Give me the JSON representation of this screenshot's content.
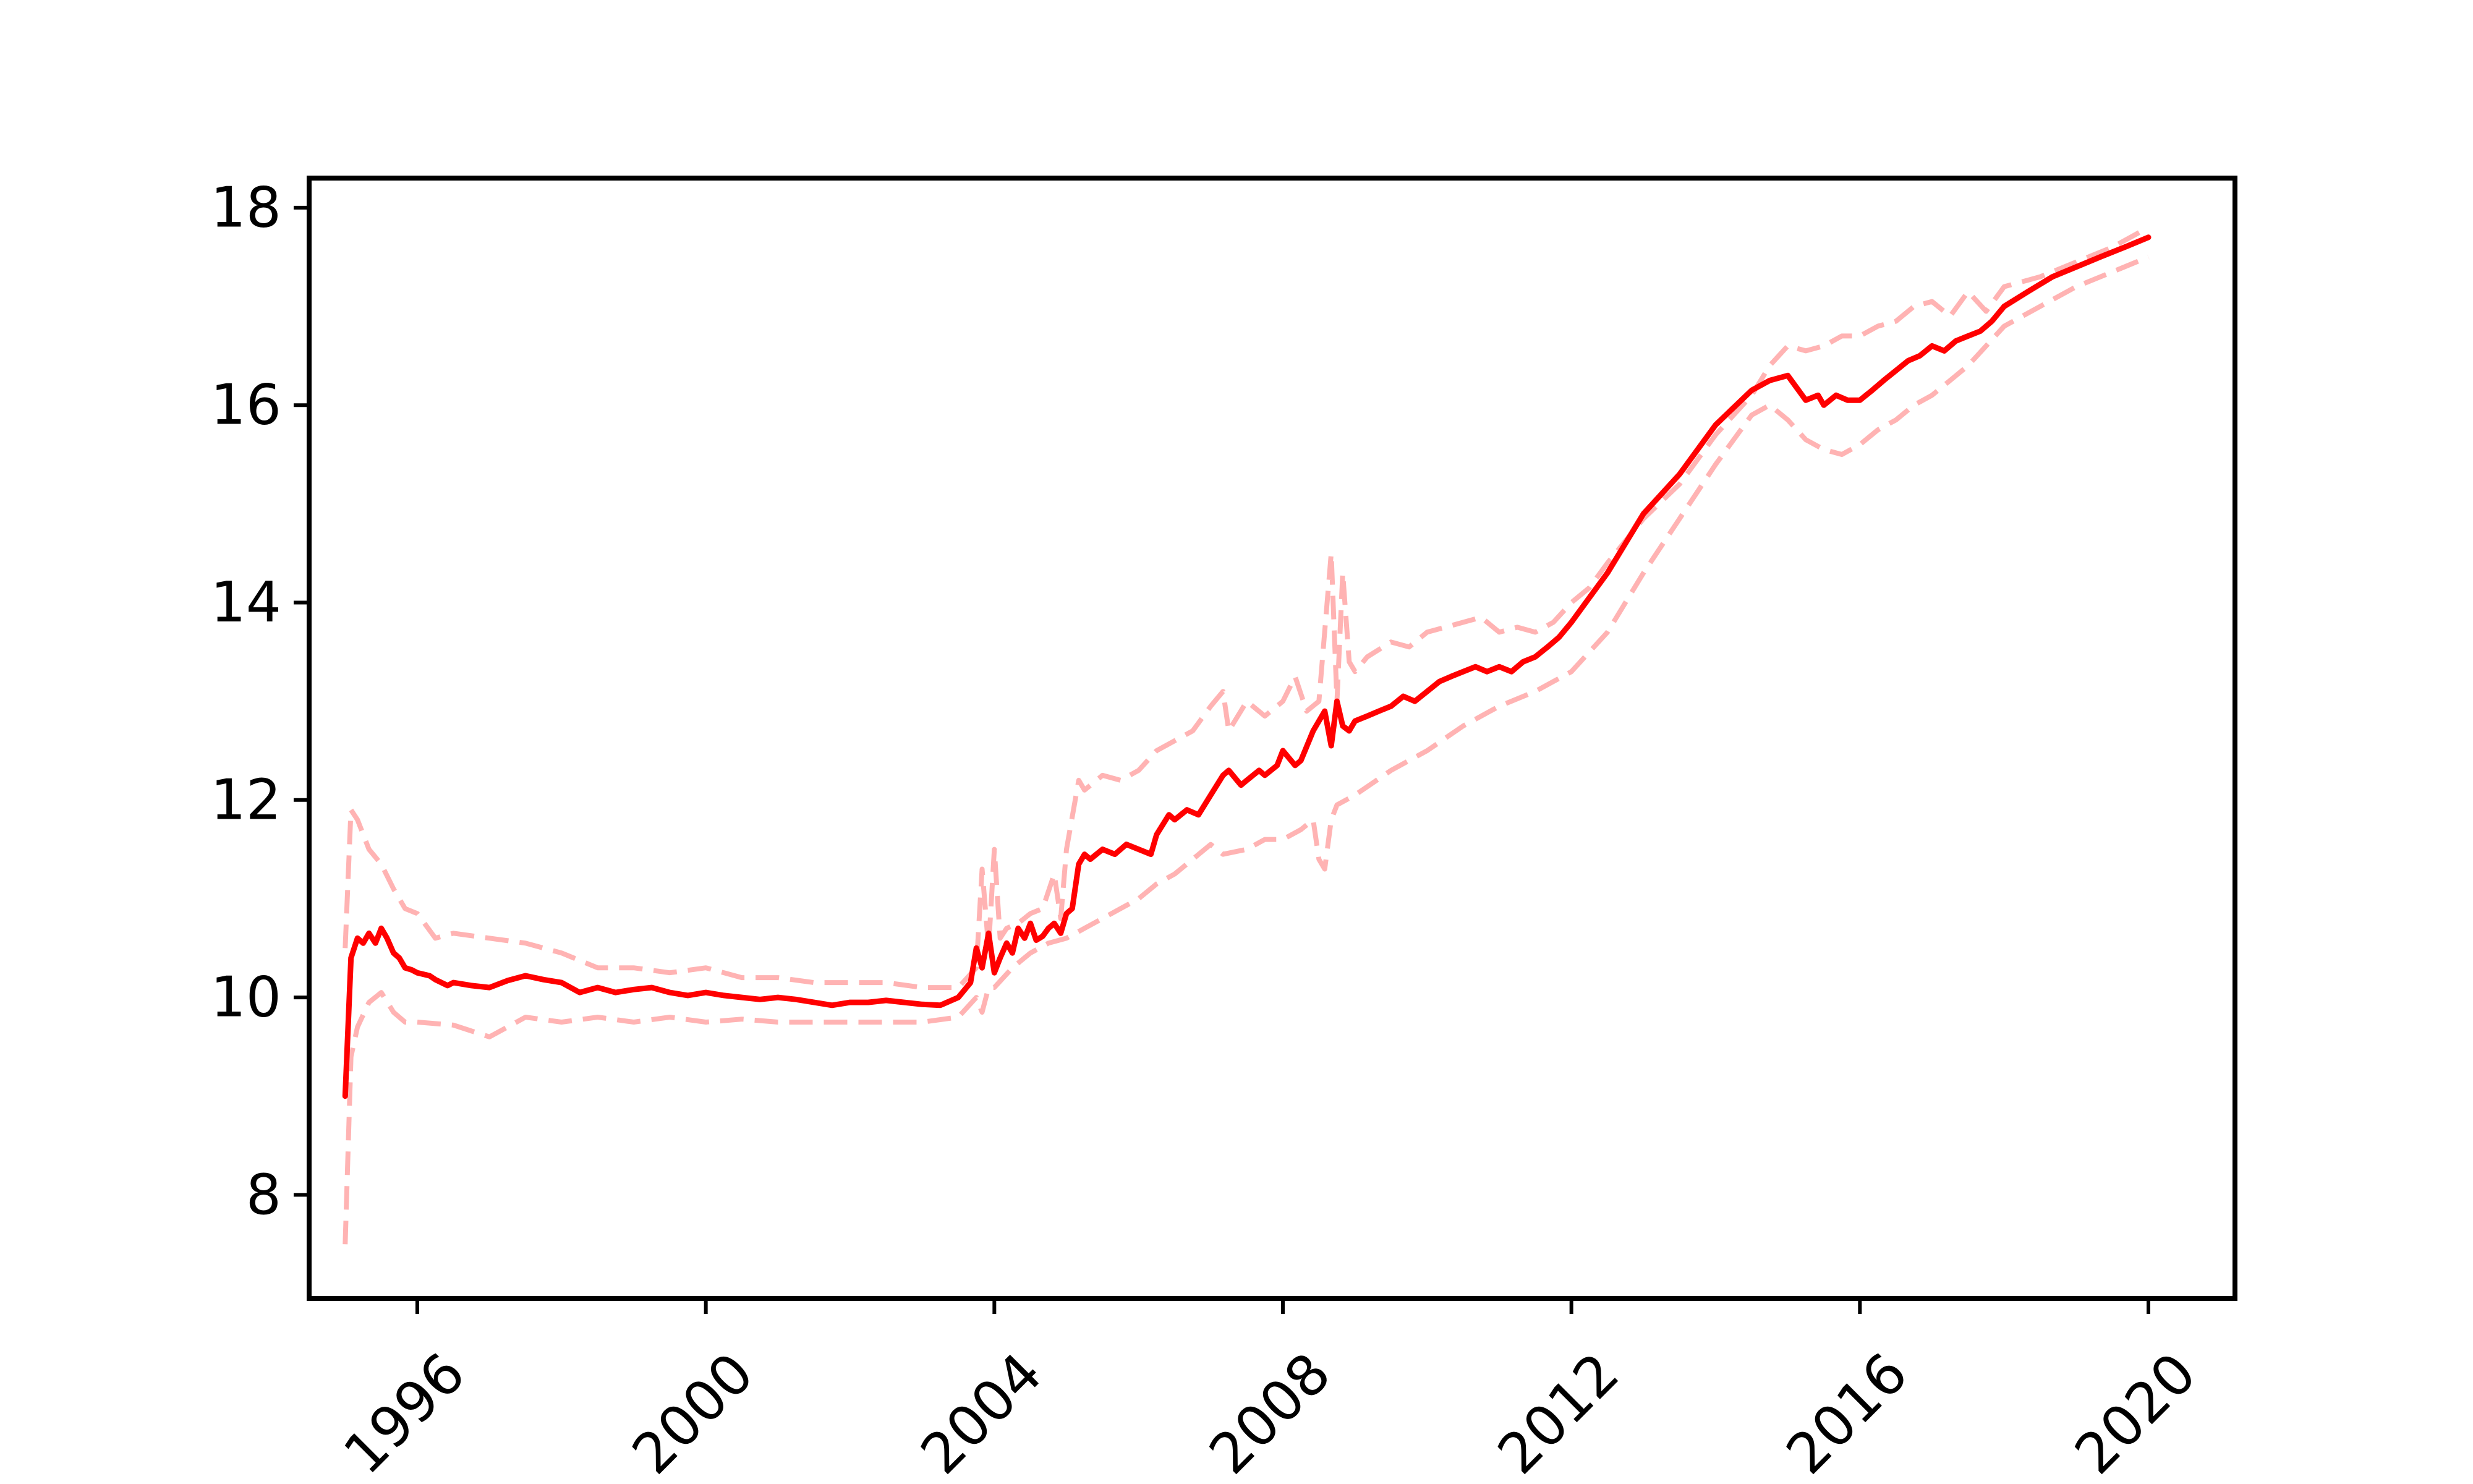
{
  "chart_data": {
    "type": "line",
    "title": "",
    "xlabel": "",
    "ylabel": "",
    "xlim": [
      1994.5,
      2021.2
    ],
    "ylim": [
      6.95,
      18.3
    ],
    "x_ticks": [
      1996,
      2000,
      2004,
      2008,
      2012,
      2016,
      2020
    ],
    "x_tick_labels": [
      "1996",
      "2000",
      "2004",
      "2008",
      "2012",
      "2016",
      "2020"
    ],
    "y_ticks": [
      8,
      10,
      12,
      14,
      16,
      18
    ],
    "y_tick_labels": [
      "8",
      "10",
      "12",
      "14",
      "16",
      "18"
    ],
    "grid": false,
    "legend": "none",
    "colors": {
      "main": "#ff0000",
      "band": "#ffb3b3",
      "axes": "#000000"
    },
    "series": [
      {
        "role": "estimate",
        "style": "solid",
        "x": [
          1995.0,
          1995.08,
          1995.17,
          1995.25,
          1995.33,
          1995.42,
          1995.5,
          1995.58,
          1995.67,
          1995.75,
          1995.83,
          1995.92,
          1996.0,
          1996.17,
          1996.25,
          1996.42,
          1996.5,
          1996.75,
          1997.0,
          1997.25,
          1997.5,
          1997.75,
          1998.0,
          1998.25,
          1998.5,
          1998.75,
          1999.0,
          1999.25,
          1999.5,
          1999.75,
          2000.0,
          2000.25,
          2000.5,
          2000.75,
          2001.0,
          2001.25,
          2001.5,
          2001.75,
          2002.0,
          2002.25,
          2002.5,
          2002.75,
          2003.0,
          2003.25,
          2003.5,
          2003.67,
          2003.75,
          2003.83,
          2003.92,
          2004.0,
          2004.08,
          2004.17,
          2004.25,
          2004.33,
          2004.42,
          2004.5,
          2004.58,
          2004.67,
          2004.75,
          2004.83,
          2004.92,
          2005.0,
          2005.08,
          2005.17,
          2005.25,
          2005.33,
          2005.5,
          2005.67,
          2005.83,
          2006.0,
          2006.17,
          2006.25,
          2006.42,
          2006.5,
          2006.67,
          2006.83,
          2007.0,
          2007.17,
          2007.25,
          2007.42,
          2007.5,
          2007.67,
          2007.75,
          2007.92,
          2008.0,
          2008.17,
          2008.25,
          2008.42,
          2008.58,
          2008.67,
          2008.75,
          2008.83,
          2008.92,
          2009.0,
          2009.17,
          2009.33,
          2009.5,
          2009.67,
          2009.83,
          2010.0,
          2010.17,
          2010.33,
          2010.5,
          2010.67,
          2010.83,
          2011.0,
          2011.17,
          2011.33,
          2011.5,
          2011.67,
          2011.83,
          2012.0,
          2012.25,
          2012.5,
          2012.75,
          2013.0,
          2013.5,
          2014.0,
          2014.5,
          2014.75,
          2015.0,
          2015.25,
          2015.42,
          2015.5,
          2015.67,
          2015.83,
          2016.0,
          2016.17,
          2016.33,
          2016.5,
          2016.67,
          2016.83,
          2017.0,
          2017.17,
          2017.33,
          2017.5,
          2017.67,
          2017.83,
          2018.0,
          2018.33,
          2018.67,
          2019.0,
          2019.33,
          2019.67,
          2020.0
        ],
        "y": [
          9.0,
          10.4,
          10.6,
          10.55,
          10.65,
          10.55,
          10.7,
          10.6,
          10.45,
          10.4,
          10.3,
          10.28,
          10.25,
          10.22,
          10.18,
          10.12,
          10.15,
          10.12,
          10.1,
          10.17,
          10.22,
          10.18,
          10.15,
          10.05,
          10.1,
          10.05,
          10.08,
          10.1,
          10.05,
          10.02,
          10.05,
          10.02,
          10.0,
          9.98,
          10.0,
          9.98,
          9.95,
          9.92,
          9.95,
          9.95,
          9.97,
          9.95,
          9.93,
          9.92,
          10.0,
          10.15,
          10.5,
          10.3,
          10.65,
          10.25,
          10.4,
          10.55,
          10.45,
          10.7,
          10.6,
          10.75,
          10.58,
          10.62,
          10.7,
          10.75,
          10.65,
          10.85,
          10.9,
          11.35,
          11.45,
          11.4,
          11.5,
          11.45,
          11.55,
          11.5,
          11.45,
          11.65,
          11.85,
          11.8,
          11.9,
          11.85,
          12.05,
          12.25,
          12.3,
          12.15,
          12.2,
          12.3,
          12.25,
          12.35,
          12.5,
          12.35,
          12.4,
          12.7,
          12.9,
          12.55,
          13.0,
          12.75,
          12.7,
          12.8,
          12.85,
          12.9,
          12.95,
          13.05,
          13.0,
          13.1,
          13.2,
          13.25,
          13.3,
          13.35,
          13.3,
          13.35,
          13.3,
          13.4,
          13.45,
          13.55,
          13.65,
          13.8,
          14.05,
          14.3,
          14.6,
          14.9,
          15.3,
          15.8,
          16.15,
          16.25,
          16.3,
          16.05,
          16.1,
          16.0,
          16.1,
          16.05,
          16.05,
          16.15,
          16.25,
          16.35,
          16.45,
          16.5,
          16.6,
          16.55,
          16.65,
          16.7,
          16.75,
          16.85,
          17.0,
          17.15,
          17.3,
          17.4,
          17.5,
          17.6,
          17.7
        ]
      },
      {
        "role": "upper",
        "style": "dashed",
        "x": [
          1995.0,
          1995.08,
          1995.17,
          1995.33,
          1995.5,
          1995.67,
          1995.83,
          1996.0,
          1996.25,
          1996.5,
          1997.0,
          1997.5,
          1998.0,
          1998.5,
          1999.0,
          1999.5,
          2000.0,
          2000.5,
          2001.0,
          2001.5,
          2002.0,
          2002.5,
          2003.0,
          2003.5,
          2003.75,
          2003.83,
          2003.92,
          2004.0,
          2004.08,
          2004.17,
          2004.33,
          2004.5,
          2004.67,
          2004.83,
          2004.92,
          2005.0,
          2005.17,
          2005.25,
          2005.5,
          2005.75,
          2006.0,
          2006.25,
          2006.5,
          2006.75,
          2007.0,
          2007.17,
          2007.25,
          2007.5,
          2007.75,
          2008.0,
          2008.17,
          2008.33,
          2008.5,
          2008.67,
          2008.75,
          2008.83,
          2008.92,
          2009.0,
          2009.17,
          2009.5,
          2009.75,
          2010.0,
          2010.25,
          2010.5,
          2010.75,
          2011.0,
          2011.25,
          2011.5,
          2011.75,
          2012.0,
          2012.25,
          2012.5,
          2013.0,
          2013.5,
          2014.0,
          2014.5,
          2014.75,
          2015.0,
          2015.25,
          2015.5,
          2015.75,
          2016.0,
          2016.25,
          2016.5,
          2016.75,
          2017.0,
          2017.25,
          2017.5,
          2017.75,
          2018.0,
          2018.5,
          2019.0,
          2019.5,
          2020.0
        ],
        "y": [
          10.5,
          11.9,
          11.8,
          11.5,
          11.35,
          11.1,
          10.9,
          10.85,
          10.6,
          10.65,
          10.6,
          10.55,
          10.45,
          10.3,
          10.3,
          10.25,
          10.3,
          10.2,
          10.2,
          10.15,
          10.15,
          10.15,
          10.1,
          10.1,
          10.3,
          11.3,
          10.5,
          11.5,
          10.6,
          10.7,
          10.75,
          10.85,
          10.9,
          11.25,
          10.8,
          11.5,
          12.2,
          12.1,
          12.25,
          12.2,
          12.3,
          12.5,
          12.6,
          12.7,
          12.95,
          13.1,
          12.7,
          13.0,
          12.85,
          13.0,
          13.25,
          12.9,
          13.0,
          14.5,
          13.0,
          14.3,
          13.4,
          13.3,
          13.45,
          13.6,
          13.55,
          13.7,
          13.75,
          13.8,
          13.85,
          13.7,
          13.75,
          13.7,
          13.8,
          14.0,
          14.15,
          14.4,
          14.85,
          15.2,
          15.7,
          16.1,
          16.4,
          16.6,
          16.55,
          16.6,
          16.7,
          16.7,
          16.8,
          16.85,
          17.0,
          17.05,
          16.9,
          17.15,
          16.95,
          17.2,
          17.3,
          17.45,
          17.6,
          17.8
        ]
      },
      {
        "role": "lower",
        "style": "dashed",
        "x": [
          1995.0,
          1995.08,
          1995.17,
          1995.33,
          1995.5,
          1995.67,
          1995.83,
          1996.0,
          1996.5,
          1997.0,
          1997.5,
          1998.0,
          1998.5,
          1999.0,
          1999.5,
          2000.0,
          2000.5,
          2001.0,
          2001.5,
          2002.0,
          2002.5,
          2003.0,
          2003.5,
          2003.75,
          2003.83,
          2003.92,
          2004.0,
          2004.25,
          2004.5,
          2004.75,
          2005.0,
          2005.25,
          2005.5,
          2005.75,
          2006.0,
          2006.25,
          2006.5,
          2006.75,
          2007.0,
          2007.17,
          2007.5,
          2007.75,
          2008.0,
          2008.25,
          2008.42,
          2008.5,
          2008.58,
          2008.67,
          2008.75,
          2009.0,
          2009.5,
          2010.0,
          2010.5,
          2011.0,
          2011.5,
          2012.0,
          2012.5,
          2013.0,
          2013.5,
          2014.0,
          2014.5,
          2014.75,
          2015.0,
          2015.25,
          2015.5,
          2015.75,
          2016.0,
          2016.25,
          2016.5,
          2016.75,
          2017.0,
          2017.25,
          2017.5,
          2017.75,
          2018.0,
          2018.5,
          2019.0,
          2019.5,
          2020.0
        ],
        "y": [
          7.5,
          9.4,
          9.7,
          9.95,
          10.05,
          9.85,
          9.75,
          9.75,
          9.72,
          9.6,
          9.8,
          9.75,
          9.8,
          9.75,
          9.8,
          9.75,
          9.78,
          9.75,
          9.75,
          9.75,
          9.75,
          9.75,
          9.8,
          10.0,
          9.85,
          10.1,
          10.1,
          10.3,
          10.45,
          10.55,
          10.6,
          10.7,
          10.8,
          10.9,
          11.0,
          11.15,
          11.25,
          11.4,
          11.55,
          11.45,
          11.5,
          11.6,
          11.6,
          11.7,
          11.8,
          11.4,
          11.3,
          11.8,
          11.95,
          12.05,
          12.3,
          12.5,
          12.75,
          12.95,
          13.1,
          13.3,
          13.7,
          14.3,
          14.85,
          15.4,
          15.9,
          16.0,
          15.85,
          15.65,
          15.55,
          15.5,
          15.6,
          15.75,
          15.85,
          16.0,
          16.1,
          16.25,
          16.4,
          16.6,
          16.8,
          17.0,
          17.2,
          17.35,
          17.5
        ]
      }
    ]
  }
}
